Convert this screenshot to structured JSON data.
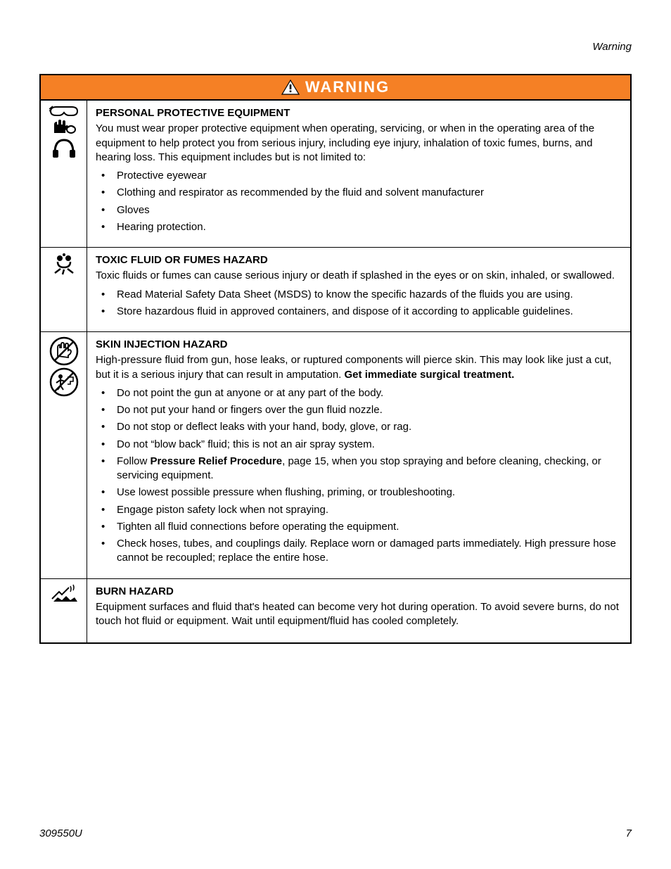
{
  "header": {
    "label": "Warning"
  },
  "banner": {
    "title": "WARNING"
  },
  "colors": {
    "banner_bg": "#f58025",
    "banner_text": "#ffffff",
    "border": "#000000"
  },
  "sections": [
    {
      "id": "ppe",
      "title": "PERSONAL PROTECTIVE EQUIPMENT",
      "intro": "You must wear proper protective equipment when operating, servicing, or when in the operating area of the equipment to help protect you from serious injury, including eye injury, inhalation of toxic fumes, burns, and hearing loss. This equipment includes but is not limited to:",
      "bullets": [
        [
          {
            "t": "Protective eyewear"
          }
        ],
        [
          {
            "t": "Clothing and respirator as recommended by the fluid and solvent manufacturer"
          }
        ],
        [
          {
            "t": "Gloves"
          }
        ],
        [
          {
            "t": "Hearing protection."
          }
        ]
      ]
    },
    {
      "id": "toxic",
      "title": "TOXIC FLUID OR FUMES HAZARD",
      "intro": "Toxic fluids or fumes can cause serious injury or death if splashed in the eyes or on skin, inhaled, or swallowed.",
      "bullets": [
        [
          {
            "t": "Read Material Safety Data Sheet (MSDS) to know the specific hazards of the fluids you are using."
          }
        ],
        [
          {
            "t": "Store hazardous fluid in approved containers, and dispose of it according to applicable guidelines."
          }
        ]
      ]
    },
    {
      "id": "skin",
      "title": "SKIN INJECTION HAZARD",
      "intro_parts": [
        {
          "t": "High-pressure fluid from gun, hose leaks, or ruptured components will pierce skin. This may look like just a cut, but it is a serious injury that can result in amputation. "
        },
        {
          "t": "Get immediate surgical treatment.",
          "b": true
        }
      ],
      "bullets": [
        [
          {
            "t": "Do not point the gun at anyone or at any part of the body."
          }
        ],
        [
          {
            "t": "Do not put your hand or fingers over the gun fluid nozzle."
          }
        ],
        [
          {
            "t": "Do not stop or deflect leaks with your hand, body, glove, or rag."
          }
        ],
        [
          {
            "t": "Do not “blow back” fluid; this is not an air spray system."
          }
        ],
        [
          {
            "t": "Follow "
          },
          {
            "t": "Pressure Relief Procedure",
            "b": true
          },
          {
            "t": ", page 15, when you stop spraying and before cleaning, checking, or servicing equipment."
          }
        ],
        [
          {
            "t": "Use lowest possible pressure when flushing, priming, or troubleshooting."
          }
        ],
        [
          {
            "t": "Engage piston safety lock when not spraying."
          }
        ],
        [
          {
            "t": "Tighten all fluid connections before operating the equipment."
          }
        ],
        [
          {
            "t": "Check hoses, tubes, and couplings daily. Replace worn or damaged parts immediately. High pressure hose cannot be recoupled; replace the entire hose."
          }
        ]
      ]
    },
    {
      "id": "burn",
      "title": "BURN HAZARD",
      "intro": "Equipment surfaces and fluid that's heated can become very hot during operation. To avoid severe burns, do not touch hot fluid or equipment. Wait until equipment/fluid has cooled completely."
    }
  ],
  "footer": {
    "doc": "309550U",
    "page": "7"
  }
}
